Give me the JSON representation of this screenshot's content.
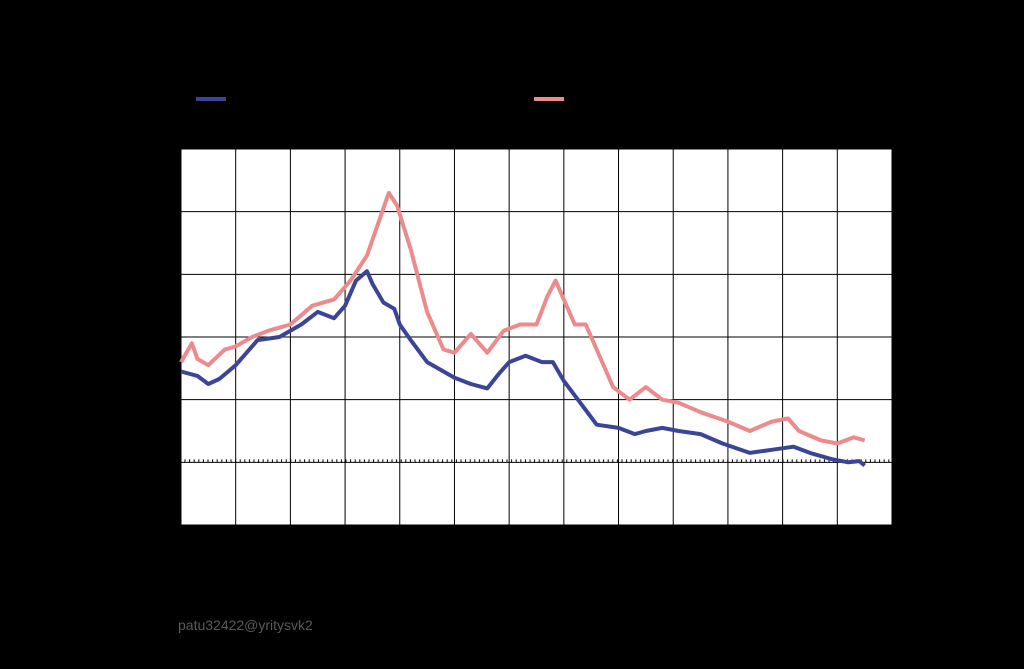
{
  "footer": {
    "credit": "patu32422@yritysvk2"
  },
  "colors": {
    "background": "#000000",
    "plot_bg": "#ffffff",
    "grid": "#000000",
    "series_a": "#3b4596",
    "series_b": "#ec8a8c"
  },
  "chart_data": {
    "type": "line",
    "title": "",
    "xlabel": "",
    "ylabel": "",
    "grid": true,
    "legend_position": "top",
    "xlim": [
      0,
      13
    ],
    "ylim": [
      -1,
      5
    ],
    "x_gridlines": 13,
    "y_gridlines": 6,
    "zero_line_y": 0,
    "series": [
      {
        "color": "#3b4596",
        "points": [
          [
            0.0,
            1.45
          ],
          [
            0.3,
            1.38
          ],
          [
            0.5,
            1.25
          ],
          [
            0.7,
            1.33
          ],
          [
            1.0,
            1.55
          ],
          [
            1.4,
            1.95
          ],
          [
            1.8,
            2.0
          ],
          [
            2.2,
            2.2
          ],
          [
            2.5,
            2.4
          ],
          [
            2.8,
            2.3
          ],
          [
            3.0,
            2.5
          ],
          [
            3.2,
            2.9
          ],
          [
            3.4,
            3.05
          ],
          [
            3.5,
            2.85
          ],
          [
            3.7,
            2.55
          ],
          [
            3.9,
            2.45
          ],
          [
            4.0,
            2.2
          ],
          [
            4.2,
            1.95
          ],
          [
            4.5,
            1.6
          ],
          [
            5.0,
            1.35
          ],
          [
            5.3,
            1.25
          ],
          [
            5.6,
            1.18
          ],
          [
            5.8,
            1.4
          ],
          [
            6.0,
            1.6
          ],
          [
            6.3,
            1.7
          ],
          [
            6.6,
            1.6
          ],
          [
            6.8,
            1.6
          ],
          [
            7.0,
            1.3
          ],
          [
            7.3,
            0.95
          ],
          [
            7.6,
            0.6
          ],
          [
            8.0,
            0.55
          ],
          [
            8.3,
            0.45
          ],
          [
            8.5,
            0.5
          ],
          [
            8.8,
            0.55
          ],
          [
            9.1,
            0.5
          ],
          [
            9.5,
            0.45
          ],
          [
            9.9,
            0.3
          ],
          [
            10.4,
            0.15
          ],
          [
            10.8,
            0.2
          ],
          [
            11.2,
            0.25
          ],
          [
            11.5,
            0.15
          ],
          [
            11.9,
            0.05
          ],
          [
            12.2,
            0.0
          ],
          [
            12.4,
            0.02
          ],
          [
            12.5,
            -0.05
          ]
        ]
      },
      {
        "color": "#ec8a8c",
        "points": [
          [
            0.0,
            1.6
          ],
          [
            0.2,
            1.9
          ],
          [
            0.3,
            1.65
          ],
          [
            0.5,
            1.55
          ],
          [
            0.8,
            1.8
          ],
          [
            1.0,
            1.85
          ],
          [
            1.3,
            2.0
          ],
          [
            1.6,
            2.1
          ],
          [
            2.0,
            2.2
          ],
          [
            2.4,
            2.5
          ],
          [
            2.8,
            2.6
          ],
          [
            3.1,
            2.9
          ],
          [
            3.4,
            3.3
          ],
          [
            3.6,
            3.8
          ],
          [
            3.8,
            4.3
          ],
          [
            3.95,
            4.1
          ],
          [
            4.2,
            3.4
          ],
          [
            4.5,
            2.4
          ],
          [
            4.8,
            1.8
          ],
          [
            5.0,
            1.75
          ],
          [
            5.3,
            2.05
          ],
          [
            5.6,
            1.75
          ],
          [
            5.9,
            2.1
          ],
          [
            6.2,
            2.2
          ],
          [
            6.5,
            2.2
          ],
          [
            6.7,
            2.65
          ],
          [
            6.85,
            2.9
          ],
          [
            7.0,
            2.6
          ],
          [
            7.2,
            2.2
          ],
          [
            7.4,
            2.2
          ],
          [
            7.6,
            1.8
          ],
          [
            7.9,
            1.2
          ],
          [
            8.2,
            1.0
          ],
          [
            8.5,
            1.2
          ],
          [
            8.8,
            1.0
          ],
          [
            9.1,
            0.95
          ],
          [
            9.5,
            0.8
          ],
          [
            10.0,
            0.65
          ],
          [
            10.4,
            0.5
          ],
          [
            10.8,
            0.65
          ],
          [
            11.1,
            0.7
          ],
          [
            11.3,
            0.5
          ],
          [
            11.7,
            0.35
          ],
          [
            12.0,
            0.3
          ],
          [
            12.3,
            0.4
          ],
          [
            12.5,
            0.35
          ]
        ]
      }
    ]
  }
}
